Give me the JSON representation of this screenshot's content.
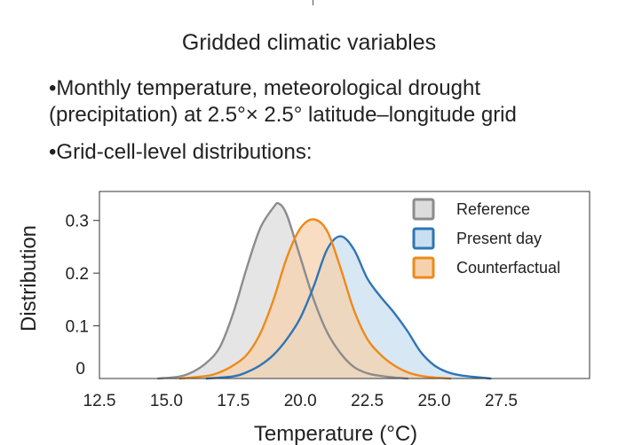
{
  "heading": "Gridded climatic variables",
  "bullets": [
    "•Monthly temperature, meteorological drought",
    "(precipitation) at 2.5°× 2.5° latitude–longitude grid",
    "•Grid-cell-level distributions:"
  ],
  "chart_data": {
    "type": "area",
    "xlabel": "Temperature (°C)",
    "ylabel": "Distribution",
    "xlim": [
      12.5,
      30.8
    ],
    "ylim": [
      0,
      0.355
    ],
    "x_ticks": [
      12.5,
      15.0,
      17.5,
      20.0,
      22.5,
      25.0,
      27.5
    ],
    "x_tick_labels": [
      "12.5",
      "15.0",
      "17.5",
      "20.0",
      "22.5",
      "25.0",
      "27.5"
    ],
    "y_ticks": [
      0,
      0.1,
      0.2,
      0.3
    ],
    "y_tick_labels": [
      "0",
      "0.1",
      "0.2",
      "0.3"
    ],
    "grid": false,
    "legend_position": "top-right",
    "series": [
      {
        "name": "Reference",
        "color": "#8c8c8c",
        "fill": "#dcdcdc",
        "x": [
          14.7,
          15.5,
          16.0,
          16.5,
          17.0,
          17.5,
          18.0,
          18.5,
          19.0,
          19.2,
          19.5,
          20.0,
          20.5,
          21.0,
          21.5,
          22.0,
          22.5,
          23.0,
          23.5,
          24.0
        ],
        "y": [
          0.0,
          0.004,
          0.013,
          0.03,
          0.06,
          0.125,
          0.21,
          0.285,
          0.325,
          0.332,
          0.31,
          0.23,
          0.15,
          0.088,
          0.048,
          0.022,
          0.01,
          0.005,
          0.002,
          0.0
        ]
      },
      {
        "name": "Present day",
        "color": "#2e75b6",
        "fill": "#c9dff0",
        "x": [
          16.5,
          17.5,
          18.0,
          18.5,
          19.0,
          19.5,
          20.0,
          20.5,
          21.0,
          21.5,
          22.0,
          22.5,
          23.0,
          23.5,
          24.0,
          24.5,
          25.0,
          25.5,
          26.0,
          26.5,
          27.1
        ],
        "y": [
          0.0,
          0.004,
          0.012,
          0.025,
          0.045,
          0.075,
          0.115,
          0.175,
          0.245,
          0.27,
          0.245,
          0.19,
          0.155,
          0.125,
          0.09,
          0.05,
          0.025,
          0.012,
          0.006,
          0.003,
          0.0
        ]
      },
      {
        "name": "Counterfactual",
        "color": "#ee8a1a",
        "fill": "#f6d1ad",
        "x": [
          15.5,
          16.5,
          17.0,
          17.5,
          18.0,
          18.5,
          19.0,
          19.5,
          20.0,
          20.5,
          21.0,
          21.5,
          22.0,
          22.5,
          23.0,
          23.5,
          24.0,
          24.5,
          25.0,
          25.6
        ],
        "y": [
          0.0,
          0.005,
          0.012,
          0.025,
          0.045,
          0.085,
          0.15,
          0.23,
          0.285,
          0.302,
          0.28,
          0.21,
          0.13,
          0.075,
          0.045,
          0.025,
          0.012,
          0.005,
          0.002,
          0.0
        ]
      }
    ]
  }
}
